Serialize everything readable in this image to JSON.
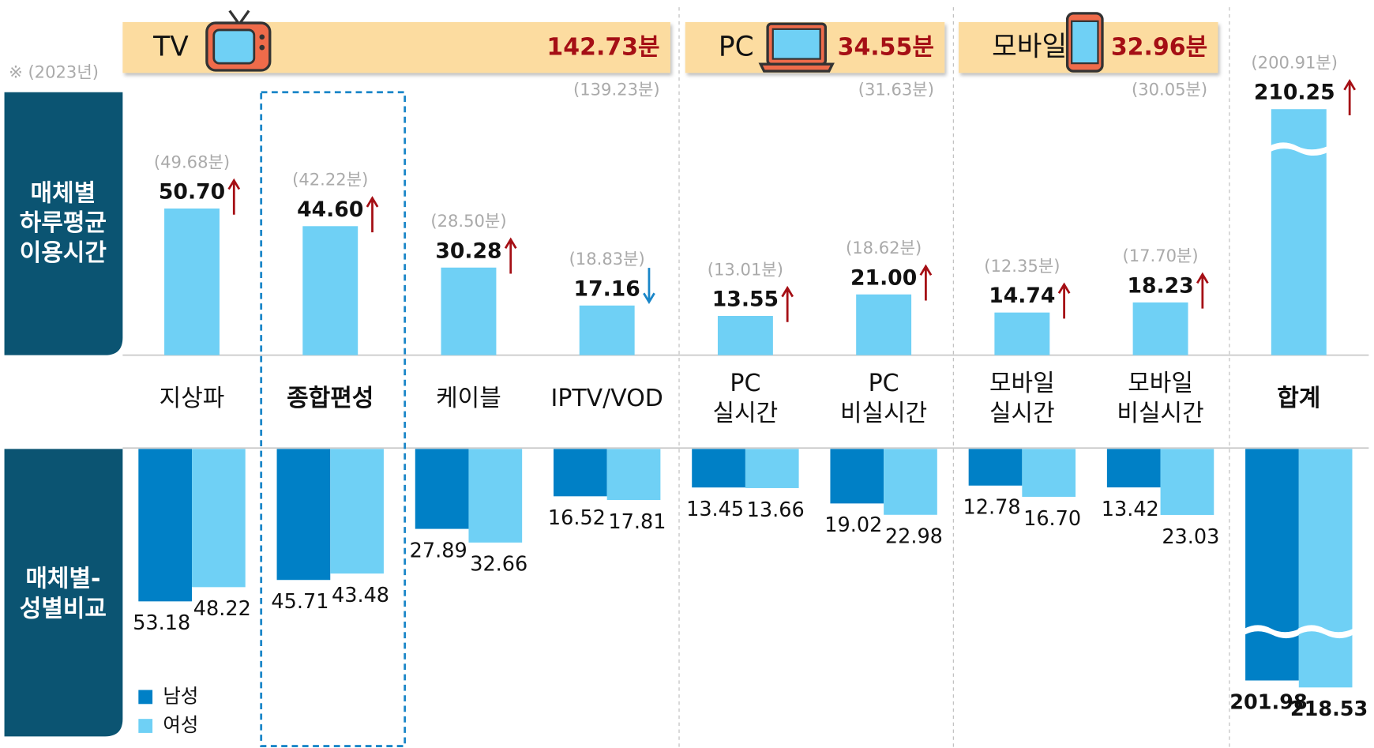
{
  "chart_data": {
    "type": "bar",
    "note": "※ (2023년)",
    "panel_labels": [
      "매체별 하루평균 이용시간",
      "매체별- 성별비교"
    ],
    "groups": [
      {
        "name": "TV",
        "total": 142.73,
        "total_label": "142.73분",
        "prev_total": 139.23,
        "prev_total_label": "(139.23분)"
      },
      {
        "name": "PC",
        "total": 34.55,
        "total_label": "34.55분",
        "prev_total": 31.63,
        "prev_total_label": "(31.63분)"
      },
      {
        "name": "모바일",
        "total": 32.96,
        "total_label": "32.96분",
        "prev_total": 30.05,
        "prev_total_label": "(30.05분)"
      }
    ],
    "categories": [
      "지상파",
      "종합편성",
      "케이블",
      "IPTV/VOD",
      "PC 실시간",
      "PC 비실시간",
      "모바일 실시간",
      "모바일 비실시간",
      "합계"
    ],
    "values": [
      50.7,
      44.6,
      30.28,
      17.16,
      13.55,
      21.0,
      14.74,
      18.23,
      210.25
    ],
    "value_labels": [
      "50.70",
      "44.60",
      "30.28",
      "17.16",
      "13.55",
      "21.00",
      "14.74",
      "18.23",
      "210.25"
    ],
    "prev_values": [
      49.68,
      42.22,
      28.5,
      18.83,
      13.01,
      18.62,
      12.35,
      17.7,
      200.91
    ],
    "prev_value_labels": [
      "(49.68분)",
      "(42.22분)",
      "(28.50분)",
      "(18.83분)",
      "(13.01분)",
      "(18.62분)",
      "(12.35분)",
      "(17.70분)",
      "(200.91분)"
    ],
    "color": "#6fd0f5",
    "arrow_colors": {
      "up": "#a50f15",
      "down": "#1a86c8"
    },
    "series": [
      {
        "name": "남성",
        "color": "#0080c6",
        "values": [
          53.18,
          45.71,
          27.89,
          16.52,
          13.45,
          19.02,
          12.78,
          13.42,
          201.98
        ],
        "value_labels": [
          "53.18",
          "45.71",
          "27.89",
          "16.52",
          "13.45",
          "19.02",
          "12.78",
          "13.42",
          "201.98"
        ]
      },
      {
        "name": "여성",
        "color": "#6fd0f5",
        "values": [
          48.22,
          43.48,
          32.66,
          17.81,
          13.66,
          22.98,
          16.7,
          23.03,
          218.53
        ],
        "value_labels": [
          "48.22",
          "43.48",
          "32.66",
          "17.81",
          "13.66",
          "22.98",
          "16.70",
          "23.03",
          "218.53"
        ]
      }
    ]
  }
}
